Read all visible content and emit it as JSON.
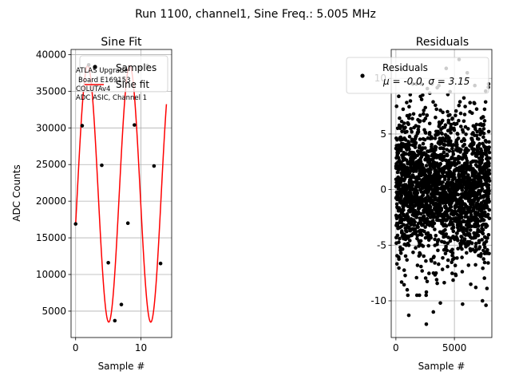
{
  "suptitle": "Run 1100, channel1, Sine Freq.: 5.005 MHz",
  "chart_data": [
    {
      "type": "scatter",
      "title": "Sine Fit",
      "xlabel": "Sample #",
      "ylabel": "ADC Counts",
      "xlim": [
        -0.7,
        14.7
      ],
      "ylim": [
        1400,
        40700
      ],
      "xticks": [
        0,
        10
      ],
      "yticks": [
        5000,
        10000,
        15000,
        20000,
        25000,
        30000,
        35000,
        40000
      ],
      "grid": true,
      "legend_position": "top",
      "legend": [
        "Samples",
        "Sine fit"
      ],
      "annotation": [
        "ATLAS Upgrade",
        "Board E169153",
        "COLUTAv4",
        "ADC ASIC, Channel 1"
      ],
      "series": [
        {
          "name": "Samples",
          "color": "#000000",
          "x": [
            0,
            1,
            2,
            3,
            4,
            5,
            6,
            7,
            8,
            9,
            10,
            11,
            12,
            13
          ],
          "y": [
            16900,
            30300,
            38600,
            38400,
            24900,
            11600,
            3700,
            5900,
            17000,
            30400,
            38200,
            38500,
            24800,
            11500
          ]
        },
        {
          "name": "Sine fit",
          "color": "#ff0000",
          "x_range": [
            0,
            13.9
          ],
          "model": {
            "amplitude": 17500,
            "offset": 21000,
            "cycles_per_sample": 0.1555,
            "phase": -0.24
          }
        }
      ]
    },
    {
      "type": "scatter",
      "title": "Residuals",
      "xlabel": "Sample #",
      "xlim": [
        -400,
        8200
      ],
      "ylim": [
        -13.3,
        12.6
      ],
      "xticks": [
        0,
        5000
      ],
      "yticks": [
        -10,
        -5,
        0,
        5,
        10
      ],
      "grid": true,
      "legend_position": "top",
      "legend": [
        "Residuals",
        "μ = -0.0, σ = 3.15"
      ],
      "series": [
        {
          "name": "Residuals",
          "color": "#000000",
          "n_points": 8000,
          "mean": 0.0,
          "std": 3.15,
          "outliers": [
            [
              1100,
              -11.3
            ],
            [
              2600,
              -12.1
            ],
            [
              3200,
              -11.0
            ],
            [
              3800,
              -10.2
            ],
            [
              5400,
              11.7
            ],
            [
              6100,
              10.5
            ],
            [
              7400,
              -10.0
            ],
            [
              7700,
              -10.4
            ],
            [
              7900,
              9.2
            ],
            [
              500,
              10.8
            ],
            [
              4300,
              10.9
            ],
            [
              5700,
              -10.3
            ]
          ]
        }
      ]
    }
  ]
}
